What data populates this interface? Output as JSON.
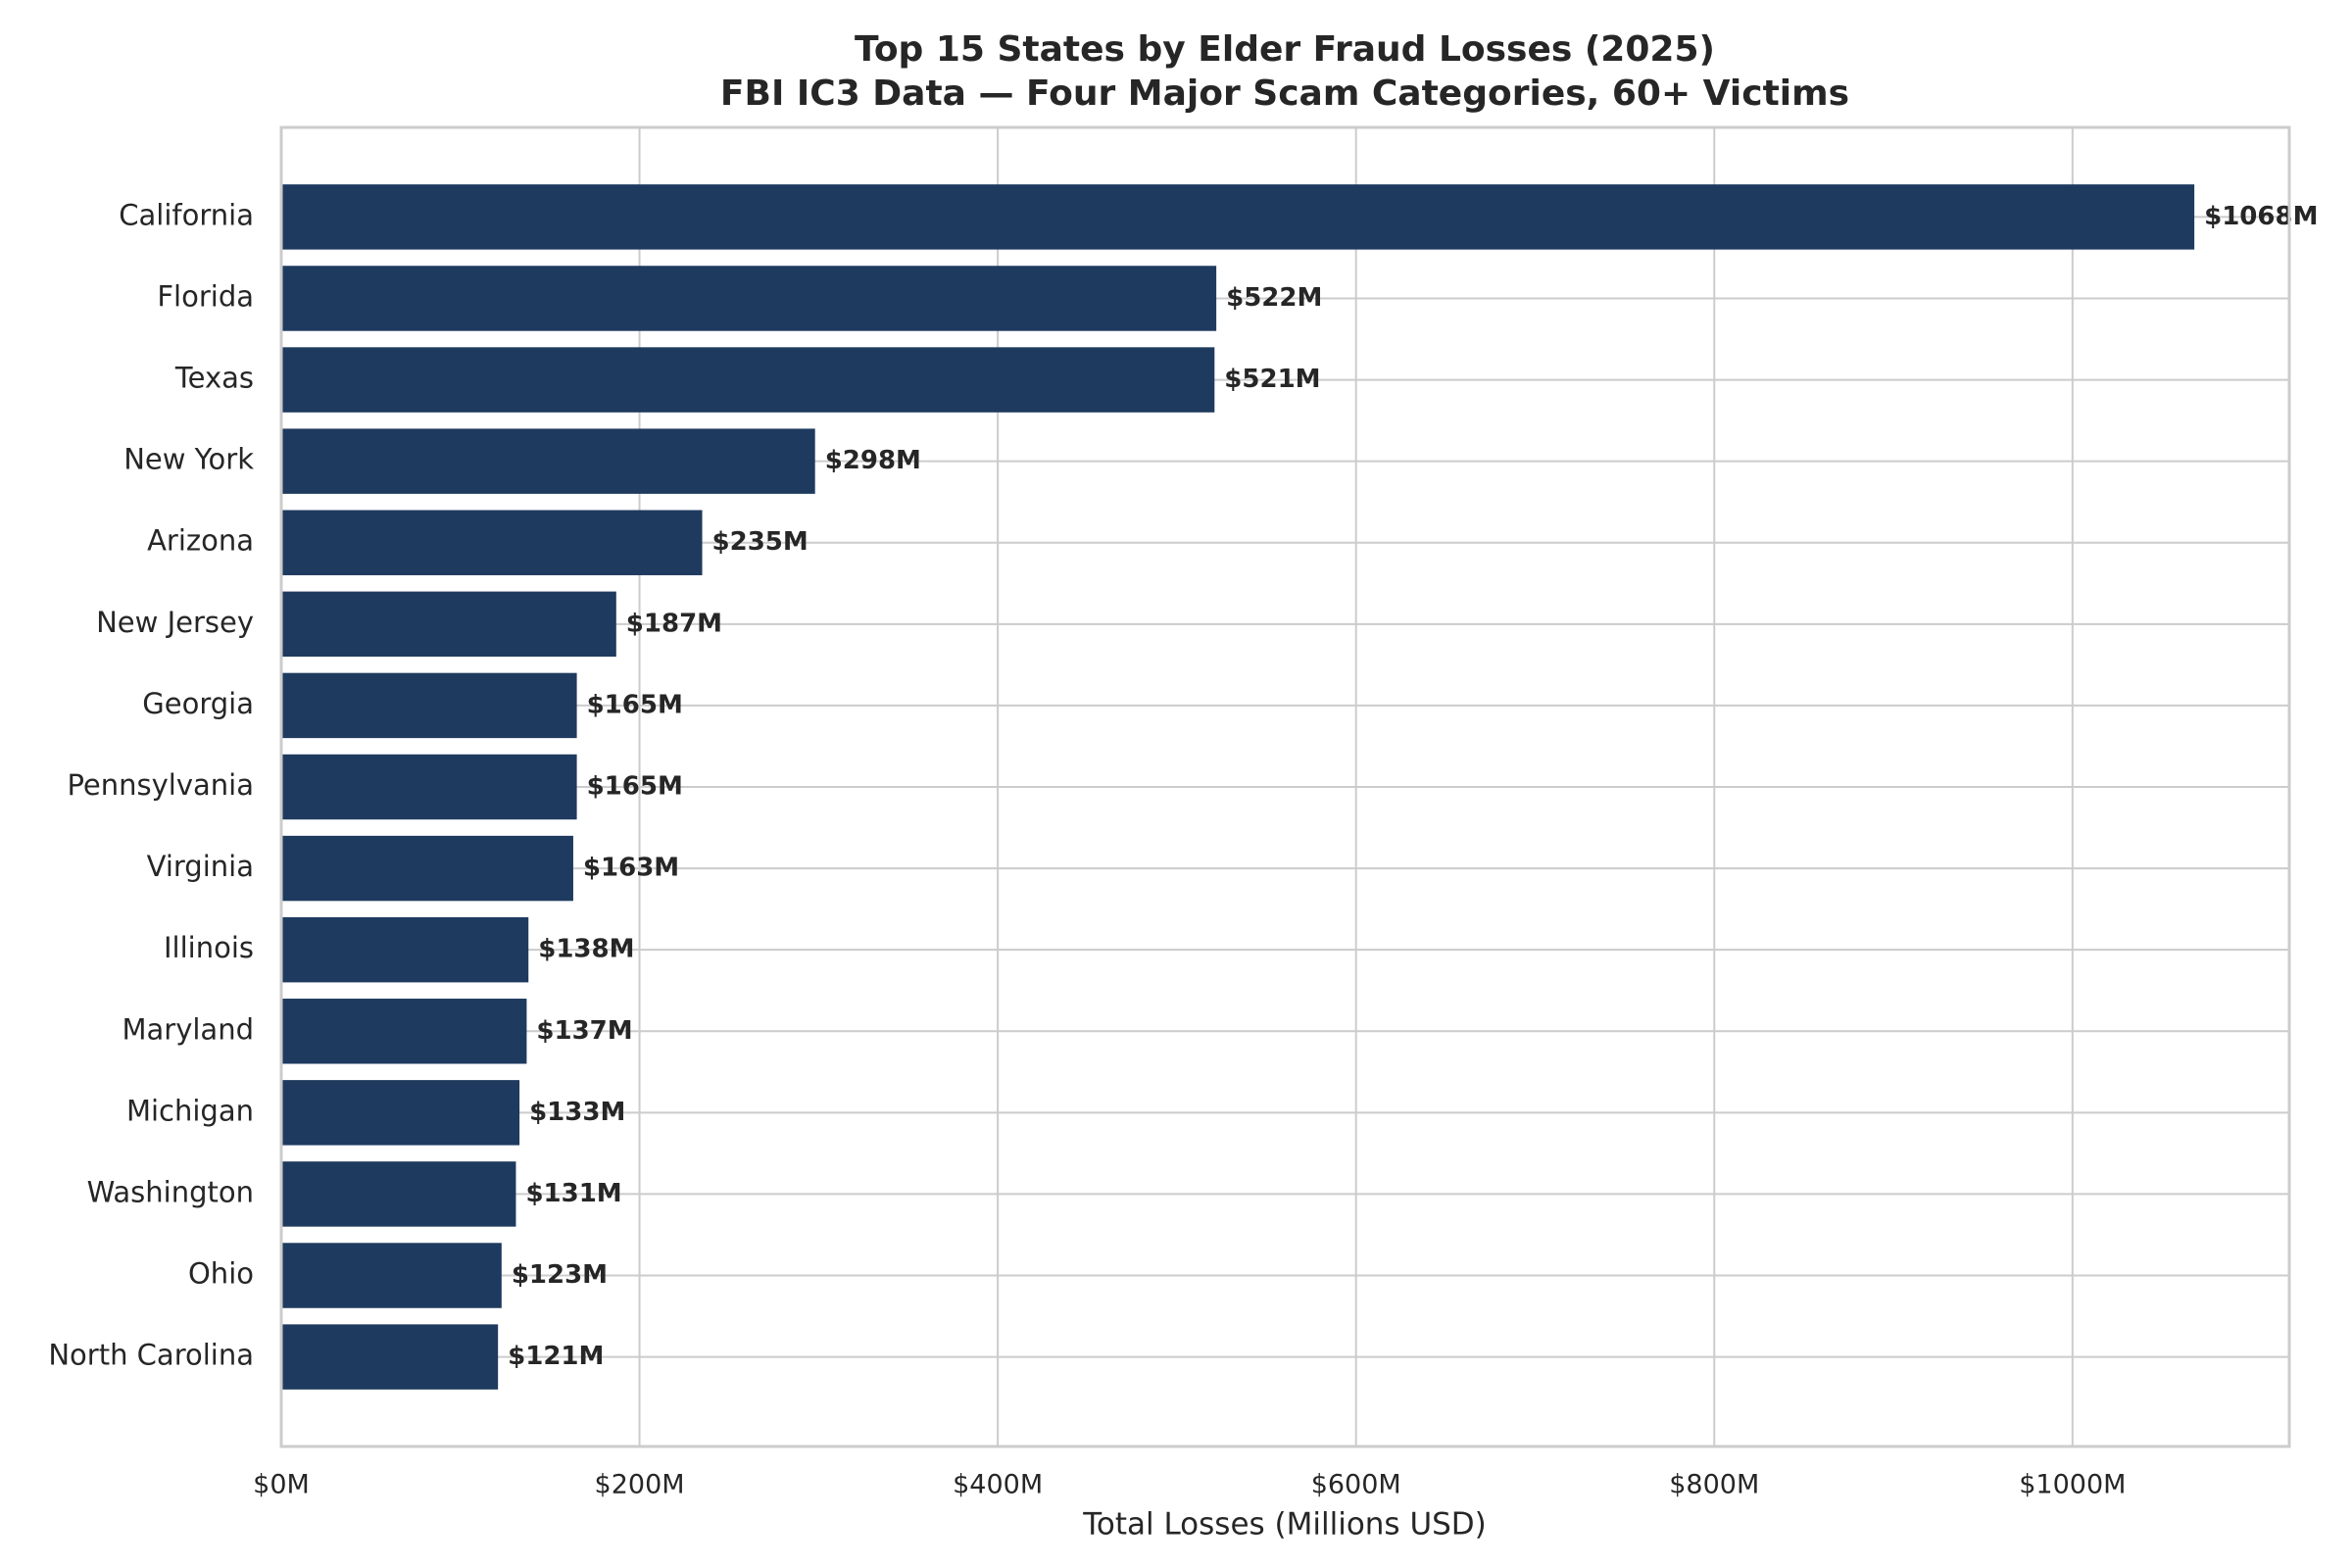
{
  "chart_data": {
    "type": "barh",
    "title": "Top 15 States by Elder Fraud Losses (2025)",
    "subtitle": "FBI IC3 Data — Four Major Scam Categories, 60+ Victims",
    "x_label": "Total Losses (Millions USD)",
    "categories": [
      "California",
      "Florida",
      "Texas",
      "New York",
      "Arizona",
      "New Jersey",
      "Georgia",
      "Pennsylvania",
      "Virginia",
      "Illinois",
      "Maryland",
      "Michigan",
      "Washington",
      "Ohio",
      "North Carolina"
    ],
    "values": [
      1068,
      522,
      521,
      298,
      235,
      187,
      165,
      165,
      163,
      138,
      137,
      133,
      131,
      123,
      121
    ],
    "value_labels": [
      "$1068M",
      "$522M",
      "$521M",
      "$298M",
      "$235M",
      "$187M",
      "$165M",
      "$165M",
      "$163M",
      "$138M",
      "$137M",
      "$133M",
      "$131M",
      "$123M",
      "$121M"
    ],
    "color": "#1f3a5f",
    "xlim": [
      0,
      1121
    ],
    "xticks": [
      {
        "value": 0,
        "label": "$0M"
      },
      {
        "value": 200,
        "label": "$200M"
      },
      {
        "value": 400,
        "label": "$400M"
      },
      {
        "value": 600,
        "label": "$600M"
      },
      {
        "value": 800,
        "label": "$800M"
      },
      {
        "value": 1000,
        "label": "$1000M"
      }
    ],
    "grid": true
  }
}
